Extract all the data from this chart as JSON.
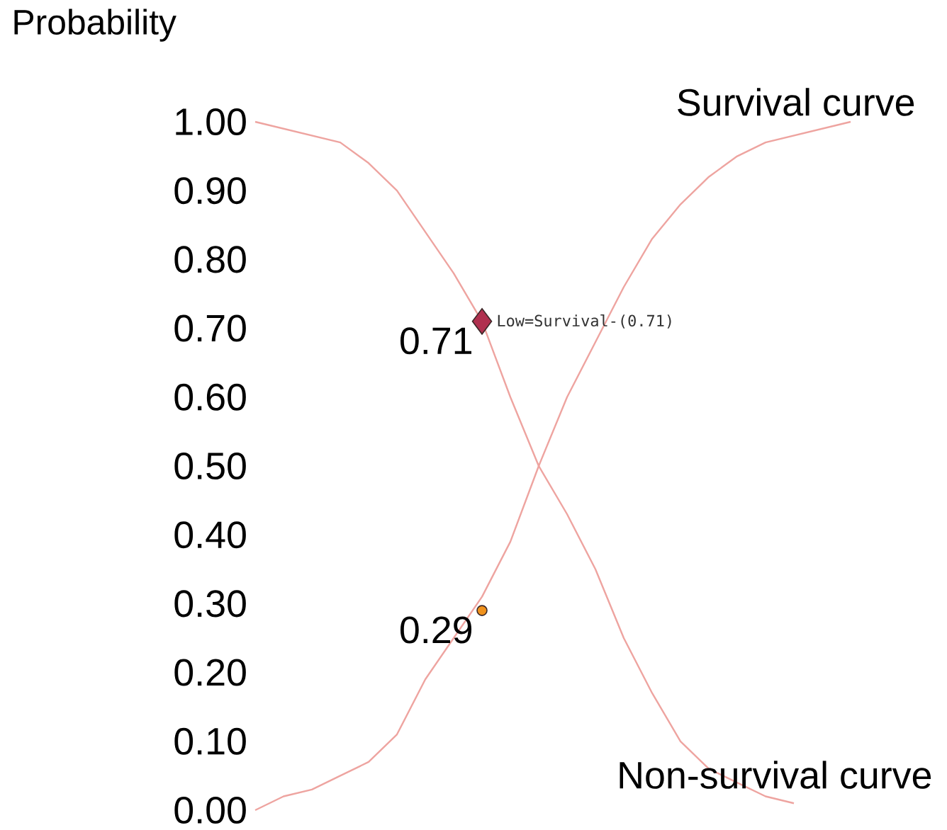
{
  "chart_data": {
    "type": "line",
    "ylabel": "Probability",
    "categories": [
      null,
      null,
      null,
      null,
      null,
      null,
      null,
      null,
      null,
      null,
      null,
      null,
      null,
      null,
      null,
      null,
      null,
      null,
      null,
      null,
      null,
      null
    ],
    "ylim": [
      0,
      1
    ],
    "yticks": [
      {
        "value": 0,
        "label": "0.00"
      },
      {
        "value": 0.1,
        "label": "0.10"
      },
      {
        "value": 0.2,
        "label": "0.20"
      },
      {
        "value": 0.3,
        "label": "0.30"
      },
      {
        "value": 0.4,
        "label": "0.40"
      },
      {
        "value": 0.5,
        "label": "0.50"
      },
      {
        "value": 0.6,
        "label": "0.60"
      },
      {
        "value": 0.7,
        "label": "0.70"
      },
      {
        "value": 0.8,
        "label": "0.80"
      },
      {
        "value": 0.9,
        "label": "0.90"
      },
      {
        "value": 1,
        "label": "1.00"
      }
    ],
    "tick_labels": "y",
    "series": [
      {
        "name": "Survival curve",
        "color": "#eea4a0",
        "values": [
          0.0,
          0.02,
          0.03,
          0.05,
          0.07,
          0.11,
          0.19,
          0.25,
          0.31,
          0.39,
          0.5,
          0.6,
          0.68,
          0.76,
          0.83,
          0.88,
          0.92,
          0.95,
          0.97,
          0.98,
          0.99,
          1.0
        ]
      },
      {
        "name": "Non-survival curve",
        "color": "#eea4a0",
        "values": [
          1.0,
          0.99,
          0.98,
          0.97,
          0.94,
          0.9,
          0.84,
          0.78,
          0.71,
          0.6,
          0.5,
          0.43,
          0.35,
          0.25,
          0.17,
          0.1,
          0.06,
          0.04,
          0.02,
          0.01,
          null,
          null
        ]
      },
      {
        "name": "Low=Survival-(0.71)",
        "type": "scatter",
        "marker": "diamond",
        "color": "#b0304f",
        "values": [
          null,
          null,
          null,
          null,
          null,
          null,
          null,
          null,
          0.71,
          null,
          null,
          null,
          null,
          null,
          null,
          null,
          null,
          null,
          null,
          null,
          null,
          null
        ],
        "value_labels": [
          null,
          null,
          null,
          null,
          null,
          null,
          null,
          null,
          "0.71",
          null,
          null,
          null,
          null,
          null,
          null,
          null,
          null,
          null,
          null,
          null,
          null,
          null
        ]
      },
      {
        "type": "scatter",
        "marker": "circle",
        "color": "#f0921c",
        "values": [
          null,
          null,
          null,
          null,
          null,
          null,
          null,
          null,
          0.29,
          null,
          null,
          null,
          null,
          null,
          null,
          null,
          null,
          null,
          null,
          null,
          null,
          null
        ],
        "value_labels": [
          null,
          null,
          null,
          null,
          null,
          null,
          null,
          null,
          "0.29",
          null,
          null,
          null,
          null,
          null,
          null,
          null,
          null,
          null,
          null,
          null,
          null,
          null
        ]
      }
    ]
  }
}
